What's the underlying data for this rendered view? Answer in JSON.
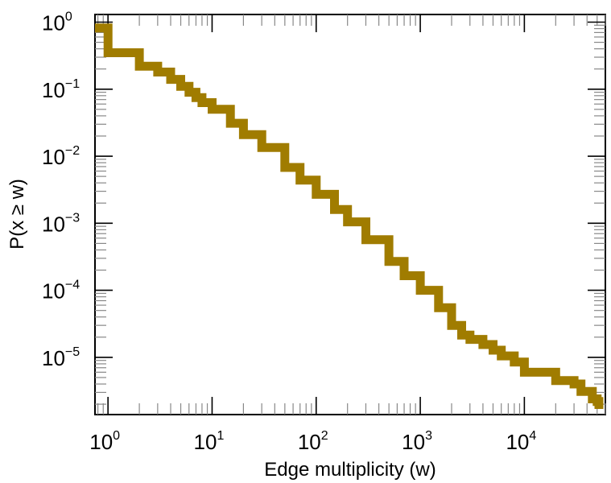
{
  "chart_data": {
    "type": "line",
    "title": "",
    "xlabel": "Edge multiplicity (w)",
    "ylabel": "P(x ≥ w)",
    "xscale": "log",
    "yscale": "log",
    "xlim": [
      0.75,
      60000
    ],
    "ylim": [
      1.4e-06,
      1.3
    ],
    "grid": false,
    "line_color": "#a07c00",
    "x_ticks": [
      {
        "value": 1,
        "base": "10",
        "exp": "0"
      },
      {
        "value": 10,
        "base": "10",
        "exp": "1"
      },
      {
        "value": 100,
        "base": "10",
        "exp": "2"
      },
      {
        "value": 1000,
        "base": "10",
        "exp": "3"
      },
      {
        "value": 10000,
        "base": "10",
        "exp": "4"
      }
    ],
    "y_ticks": [
      {
        "value": 1,
        "base": "10",
        "exp": "0"
      },
      {
        "value": 0.1,
        "base": "10",
        "exp": "−1"
      },
      {
        "value": 0.01,
        "base": "10",
        "exp": "−2"
      },
      {
        "value": 0.001,
        "base": "10",
        "exp": "−3"
      },
      {
        "value": 0.0001,
        "base": "10",
        "exp": "−4"
      },
      {
        "value": 1e-05,
        "base": "10",
        "exp": "−5"
      }
    ],
    "series": [
      {
        "name": "ccdf",
        "step": true,
        "x": [
          0.75,
          1,
          2,
          3,
          4,
          5,
          6,
          7,
          8,
          10,
          15,
          20,
          30,
          50,
          70,
          100,
          150,
          200,
          300,
          500,
          700,
          1000,
          1500,
          2000,
          2500,
          3000,
          4000,
          5000,
          6000,
          8000,
          10000,
          20000,
          30000,
          35000,
          45000,
          50000,
          52000
        ],
        "y": [
          0.82,
          0.35,
          0.22,
          0.18,
          0.14,
          0.11,
          0.09,
          0.075,
          0.063,
          0.05,
          0.031,
          0.021,
          0.0135,
          0.0068,
          0.0044,
          0.0027,
          0.0016,
          0.00105,
          0.00057,
          0.00027,
          0.000165,
          0.0001,
          5.5e-05,
          3e-05,
          2.15e-05,
          1.85e-05,
          1.55e-05,
          1.28e-05,
          1.05e-05,
          8.5e-06,
          6e-06,
          4.5e-06,
          4e-06,
          3.1e-06,
          2.4e-06,
          2.2e-06,
          1.7e-06
        ]
      }
    ]
  }
}
